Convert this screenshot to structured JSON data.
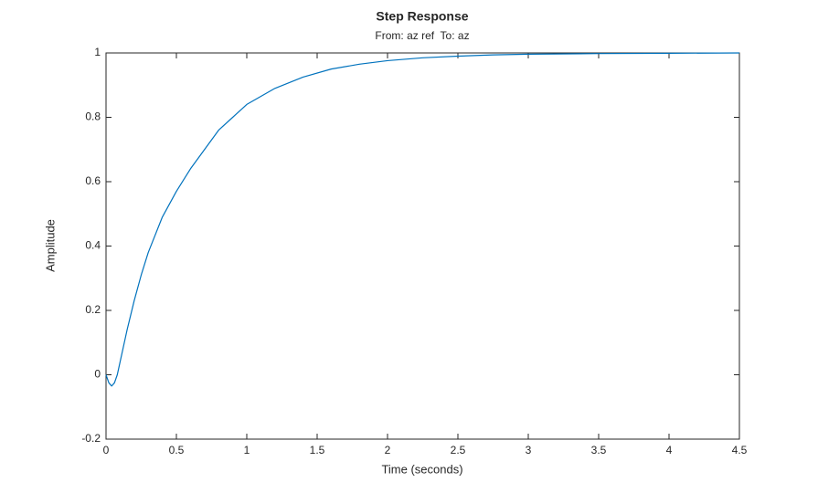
{
  "chart_data": {
    "type": "line",
    "title": "Step Response",
    "subtitle": "From: az ref  To: az",
    "x_label": "Time (seconds)",
    "y_label": "Amplitude",
    "x": [
      0,
      0.02,
      0.04,
      0.06,
      0.08,
      0.1,
      0.15,
      0.2,
      0.25,
      0.3,
      0.4,
      0.5,
      0.6,
      0.7,
      0.8,
      0.9,
      1.0,
      1.2,
      1.4,
      1.6,
      1.8,
      2.0,
      2.25,
      2.5,
      2.75,
      3.0,
      3.5,
      4.0,
      4.5
    ],
    "series": [
      {
        "color": "#0072bd",
        "values": [
          0,
          -0.025,
          -0.035,
          -0.025,
          0.0,
          0.04,
          0.14,
          0.23,
          0.31,
          0.38,
          0.49,
          0.57,
          0.64,
          0.7,
          0.76,
          0.8,
          0.84,
          0.89,
          0.925,
          0.95,
          0.965,
          0.976,
          0.985,
          0.99,
          0.994,
          0.996,
          0.998,
          0.999,
          1.0
        ]
      }
    ],
    "steady_state": 1,
    "xlim": [
      0,
      4.5
    ],
    "xticks": [
      0,
      0.5,
      1,
      1.5,
      2,
      2.5,
      3,
      3.5,
      4,
      4.5
    ],
    "ylim": [
      -0.2,
      1
    ],
    "yticks": [
      -0.2,
      0,
      0.2,
      0.4,
      0.6,
      0.8,
      1
    ],
    "grid": false
  }
}
